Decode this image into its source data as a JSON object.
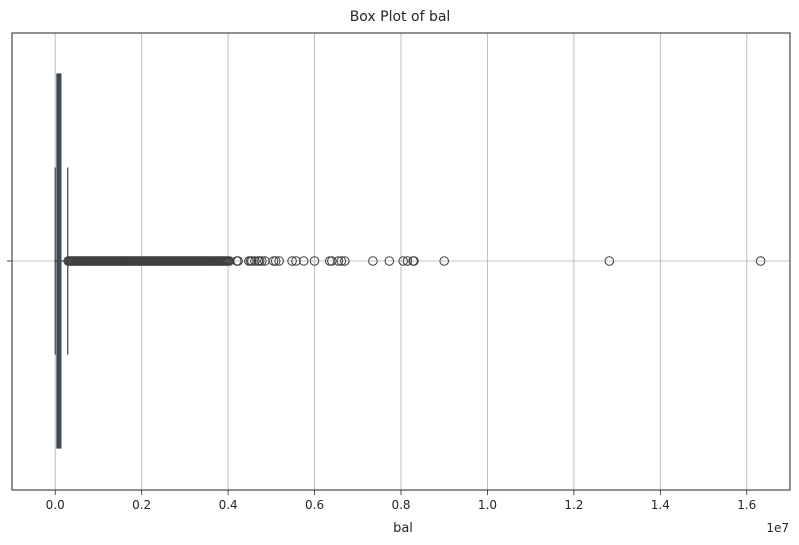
{
  "chart_data": {
    "type": "box",
    "title": "Box Plot of bal",
    "xlabel": "bal",
    "ylabel": "",
    "orientation": "horizontal",
    "x_scale_label": "1e7",
    "xlim": [
      -1000000,
      17000000
    ],
    "xticks": [
      0,
      2000000,
      4000000,
      6000000,
      8000000,
      10000000,
      12000000,
      14000000,
      16000000
    ],
    "xtick_labels": [
      "0.0",
      "0.2",
      "0.4",
      "0.6",
      "0.8",
      "1.0",
      "1.2",
      "1.4",
      "1.6"
    ],
    "grid": true,
    "box": {
      "min": 0,
      "q1": 40000,
      "median": 80000,
      "q3": 130000,
      "whisker_high": 290000
    },
    "outliers": [
      4030000,
      4200000,
      4230000,
      4480000,
      4520000,
      4550000,
      4620000,
      4700000,
      4730000,
      4780000,
      4850000,
      5050000,
      5100000,
      5180000,
      5480000,
      5570000,
      5750000,
      6000000,
      6350000,
      6400000,
      6550000,
      6620000,
      6700000,
      7350000,
      7730000,
      8050000,
      8150000,
      8280000,
      8300000,
      9000000,
      12820000,
      16320000
    ],
    "outlier_dense_range": [
      300000,
      4000000
    ],
    "colors": {
      "box_fill": "#3a5b85",
      "line": "#3f3f3f",
      "grid": "#b0b0b0"
    }
  }
}
